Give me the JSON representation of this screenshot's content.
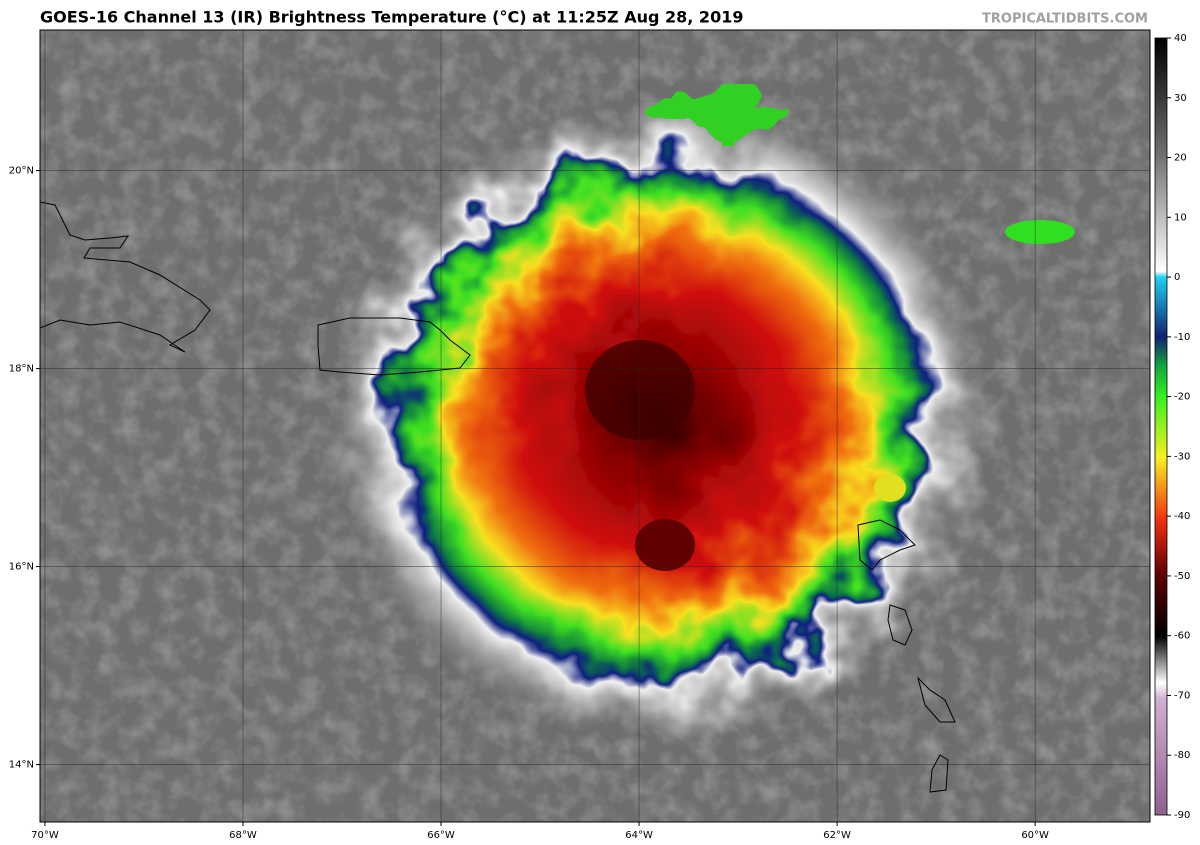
{
  "map": {
    "title": "GOES-16 Channel 13 (IR) Brightness Temperature (°C) at 11:25Z Aug 28, 2019",
    "source": "TROPICALTIDBITS.COM",
    "xlim": [
      -70.05,
      -58.84
    ],
    "ylim": [
      13.42,
      21.42
    ],
    "xticks": [
      {
        "value": -70,
        "label": "70°W"
      },
      {
        "value": -68,
        "label": "68°W"
      },
      {
        "value": -66,
        "label": "66°W"
      },
      {
        "value": -64,
        "label": "64°W"
      },
      {
        "value": -62,
        "label": "62°W"
      },
      {
        "value": -60,
        "label": "60°W"
      }
    ],
    "yticks": [
      {
        "value": 14,
        "label": "14°N"
      },
      {
        "value": 16,
        "label": "16°N"
      },
      {
        "value": 18,
        "label": "18°N"
      },
      {
        "value": 20,
        "label": "20°N"
      }
    ],
    "colorbar": {
      "lim": [
        -90,
        40
      ],
      "ticks": [
        40,
        30,
        20,
        10,
        0,
        -10,
        -20,
        -30,
        -40,
        -50,
        -60,
        -70,
        -80,
        -90
      ]
    }
  }
}
